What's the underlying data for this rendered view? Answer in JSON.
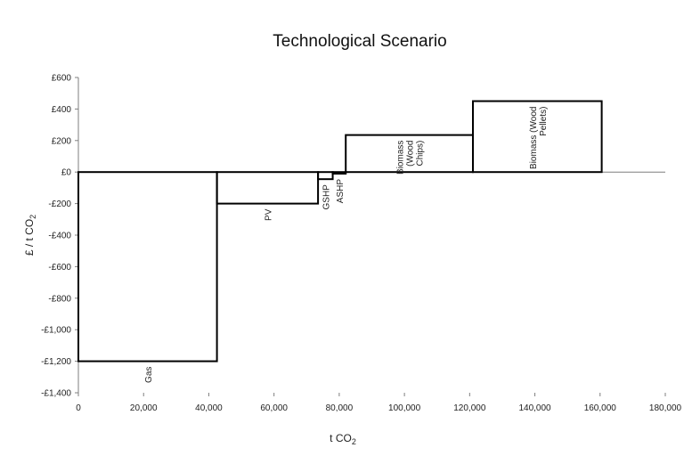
{
  "chart_data": {
    "type": "bar",
    "title": "Technological Scenario",
    "xlabel": "t CO",
    "xlabel_sub": "2",
    "ylabel": "£ / t CO",
    "ylabel_sub": "2",
    "xlim": [
      0,
      180000
    ],
    "ylim": [
      -1400,
      600
    ],
    "x_ticks": [
      0,
      20000,
      40000,
      60000,
      80000,
      100000,
      120000,
      140000,
      160000,
      180000
    ],
    "x_tick_labels": [
      "0",
      "20,000",
      "40,000",
      "60,000",
      "80,000",
      "100,000",
      "120,000",
      "140,000",
      "160,000",
      "180,000"
    ],
    "y_ticks": [
      600,
      400,
      200,
      0,
      -200,
      -400,
      -600,
      -800,
      -1000,
      -1200,
      -1400
    ],
    "y_tick_labels": [
      "£600",
      "£400",
      "£200",
      "£0",
      "-£200",
      "-£400",
      "-£600",
      "-£800",
      "-£1,000",
      "-£1,200",
      "-£1,400"
    ],
    "segments": [
      {
        "label": "Gas",
        "x_start": 0,
        "x_end": 42500,
        "value": -1200
      },
      {
        "label": "PV",
        "x_start": 42500,
        "x_end": 73500,
        "value": -200
      },
      {
        "label": "GSHP",
        "x_start": 73500,
        "x_end": 78000,
        "value": -45
      },
      {
        "label": "ASHP",
        "x_start": 78000,
        "x_end": 82000,
        "value": -10
      },
      {
        "label": "Biomass (Wood Chips)",
        "x_start": 82000,
        "x_end": 121000,
        "value": 235
      },
      {
        "label": "Biomass (Wood Pellets)",
        "x_start": 121000,
        "x_end": 160500,
        "value": 450
      }
    ],
    "grid": false,
    "legend": "none",
    "colors": {
      "line": "#000000",
      "axis": "#7f7f7f"
    }
  }
}
